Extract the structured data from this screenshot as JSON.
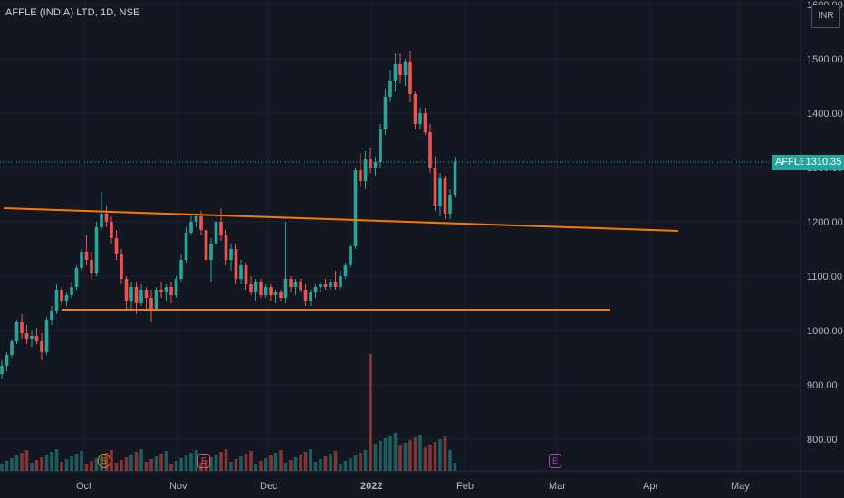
{
  "legend": {
    "title": "AFFLE (INDIA) LTD, 1D, NSE"
  },
  "price_scale": {
    "currency": "INR",
    "current_symbol": "AFFLE",
    "current_price": "1310.35",
    "ticks": [
      "1600.00",
      "1500.00",
      "1400.00",
      "1300.00",
      "1200.00",
      "1100.00",
      "1000.00",
      "900.00",
      "800.00"
    ]
  },
  "time_scale": {
    "ticks": [
      "Oct",
      "Nov",
      "Dec",
      "2022",
      "Feb",
      "Mar",
      "Apr",
      "May"
    ]
  },
  "events": [
    {
      "label": "S",
      "kind": "split"
    },
    {
      "label": "E",
      "kind": "earnings-past"
    },
    {
      "label": "E",
      "kind": "earnings-future"
    }
  ],
  "colors": {
    "background": "#131722",
    "up": "#26a69a",
    "down": "#ef5350",
    "trendline": "#f57c00",
    "grid": "#1e222d",
    "text": "#d1d4dc"
  },
  "chart_data": {
    "type": "candlestick",
    "title": "AFFLE (INDIA) LTD, 1D, NSE",
    "ylim": [
      750,
      1600
    ],
    "ohlc": [
      [
        920,
        945,
        910,
        935
      ],
      [
        935,
        960,
        925,
        955
      ],
      [
        955,
        985,
        950,
        980
      ],
      [
        980,
        1020,
        975,
        1015
      ],
      [
        1015,
        1030,
        985,
        995
      ],
      [
        995,
        1010,
        975,
        985
      ],
      [
        985,
        1000,
        970,
        990
      ],
      [
        990,
        1005,
        975,
        980
      ],
      [
        980,
        995,
        945,
        960
      ],
      [
        960,
        1025,
        955,
        1020
      ],
      [
        1020,
        1045,
        1010,
        1035
      ],
      [
        1035,
        1085,
        1030,
        1075
      ],
      [
        1075,
        1080,
        1045,
        1055
      ],
      [
        1055,
        1070,
        1045,
        1065
      ],
      [
        1065,
        1090,
        1060,
        1080
      ],
      [
        1080,
        1120,
        1075,
        1115
      ],
      [
        1115,
        1150,
        1110,
        1145
      ],
      [
        1145,
        1175,
        1120,
        1130
      ],
      [
        1130,
        1145,
        1095,
        1105
      ],
      [
        1105,
        1200,
        1100,
        1190
      ],
      [
        1190,
        1255,
        1185,
        1215
      ],
      [
        1215,
        1230,
        1190,
        1200
      ],
      [
        1200,
        1210,
        1160,
        1170
      ],
      [
        1170,
        1185,
        1130,
        1140
      ],
      [
        1140,
        1150,
        1085,
        1095
      ],
      [
        1095,
        1100,
        1040,
        1055
      ],
      [
        1055,
        1090,
        1040,
        1080
      ],
      [
        1080,
        1090,
        1030,
        1050
      ],
      [
        1050,
        1085,
        1045,
        1075
      ],
      [
        1075,
        1080,
        1040,
        1060
      ],
      [
        1060,
        1075,
        1015,
        1040
      ],
      [
        1040,
        1080,
        1035,
        1075
      ],
      [
        1075,
        1090,
        1060,
        1070
      ],
      [
        1070,
        1085,
        1055,
        1080
      ],
      [
        1080,
        1090,
        1050,
        1065
      ],
      [
        1065,
        1100,
        1060,
        1095
      ],
      [
        1095,
        1140,
        1090,
        1130
      ],
      [
        1130,
        1190,
        1125,
        1180
      ],
      [
        1180,
        1215,
        1175,
        1200
      ],
      [
        1200,
        1215,
        1190,
        1210
      ],
      [
        1210,
        1220,
        1175,
        1185
      ],
      [
        1185,
        1190,
        1120,
        1130
      ],
      [
        1130,
        1170,
        1090,
        1160
      ],
      [
        1160,
        1210,
        1155,
        1200
      ],
      [
        1200,
        1225,
        1165,
        1175
      ],
      [
        1175,
        1185,
        1120,
        1130
      ],
      [
        1130,
        1160,
        1110,
        1150
      ],
      [
        1150,
        1160,
        1085,
        1095
      ],
      [
        1095,
        1130,
        1085,
        1120
      ],
      [
        1120,
        1125,
        1075,
        1085
      ],
      [
        1085,
        1100,
        1065,
        1070
      ],
      [
        1070,
        1095,
        1055,
        1090
      ],
      [
        1090,
        1095,
        1060,
        1065
      ],
      [
        1065,
        1085,
        1060,
        1080
      ],
      [
        1080,
        1085,
        1055,
        1065
      ],
      [
        1065,
        1075,
        1050,
        1070
      ],
      [
        1070,
        1075,
        1055,
        1060
      ],
      [
        1060,
        1200,
        1050,
        1095
      ],
      [
        1095,
        1100,
        1070,
        1080
      ],
      [
        1080,
        1095,
        1065,
        1090
      ],
      [
        1090,
        1095,
        1070,
        1075
      ],
      [
        1075,
        1085,
        1045,
        1055
      ],
      [
        1055,
        1075,
        1045,
        1070
      ],
      [
        1070,
        1085,
        1060,
        1080
      ],
      [
        1080,
        1090,
        1070,
        1085
      ],
      [
        1085,
        1095,
        1075,
        1080
      ],
      [
        1080,
        1095,
        1075,
        1090
      ],
      [
        1090,
        1110,
        1075,
        1080
      ],
      [
        1080,
        1110,
        1075,
        1100
      ],
      [
        1100,
        1125,
        1095,
        1120
      ],
      [
        1120,
        1160,
        1115,
        1155
      ],
      [
        1155,
        1300,
        1150,
        1295
      ],
      [
        1295,
        1325,
        1265,
        1275
      ],
      [
        1275,
        1330,
        1260,
        1315
      ],
      [
        1315,
        1335,
        1290,
        1300
      ],
      [
        1300,
        1320,
        1285,
        1310
      ],
      [
        1310,
        1380,
        1300,
        1370
      ],
      [
        1370,
        1445,
        1360,
        1430
      ],
      [
        1430,
        1480,
        1420,
        1460
      ],
      [
        1460,
        1510,
        1440,
        1490
      ],
      [
        1490,
        1510,
        1455,
        1470
      ],
      [
        1470,
        1500,
        1450,
        1495
      ],
      [
        1495,
        1515,
        1420,
        1435
      ],
      [
        1435,
        1440,
        1370,
        1380
      ],
      [
        1380,
        1410,
        1370,
        1400
      ],
      [
        1400,
        1410,
        1360,
        1365
      ],
      [
        1365,
        1380,
        1290,
        1300
      ],
      [
        1300,
        1320,
        1220,
        1230
      ],
      [
        1230,
        1290,
        1210,
        1280
      ],
      [
        1280,
        1285,
        1205,
        1215
      ],
      [
        1215,
        1260,
        1205,
        1250
      ],
      [
        1250,
        1320,
        1245,
        1310
      ]
    ]
  }
}
